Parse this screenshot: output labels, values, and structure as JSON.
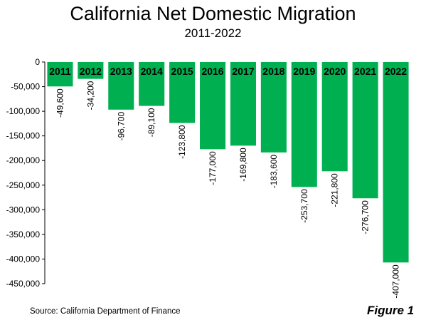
{
  "chart_data": {
    "type": "bar",
    "title": "California Net Domestic Migration",
    "subtitle": "2011-2022",
    "categories": [
      "2011",
      "2012",
      "2013",
      "2014",
      "2015",
      "2016",
      "2017",
      "2018",
      "2019",
      "2020",
      "2021",
      "2022"
    ],
    "values": [
      -49600,
      -34200,
      -96700,
      -89100,
      -123800,
      -177000,
      -169800,
      -183600,
      -253700,
      -221800,
      -276700,
      -407000
    ],
    "data_labels": [
      "-49,600",
      "-34,200",
      "-96,700",
      "-89,100",
      "-123,800",
      "-177,000",
      "-169,800",
      "-183,600",
      "-253,700",
      "-221,800",
      "-276,700",
      "-407,000"
    ],
    "ylim": [
      -450000,
      0
    ],
    "yticks": [
      0,
      -50000,
      -100000,
      -150000,
      -200000,
      -250000,
      -300000,
      -350000,
      -400000,
      -450000
    ],
    "ytick_labels": [
      "0",
      "-50,000",
      "-100,000",
      "-150,000",
      "-200,000",
      "-250,000",
      "-300,000",
      "-350,000",
      "-400,000",
      "-450,000"
    ],
    "bar_color": "#00b050",
    "grid": false,
    "legend": "none"
  },
  "footer": {
    "source": "Source: California Department of Finance",
    "figure_label": "Figure 1"
  }
}
